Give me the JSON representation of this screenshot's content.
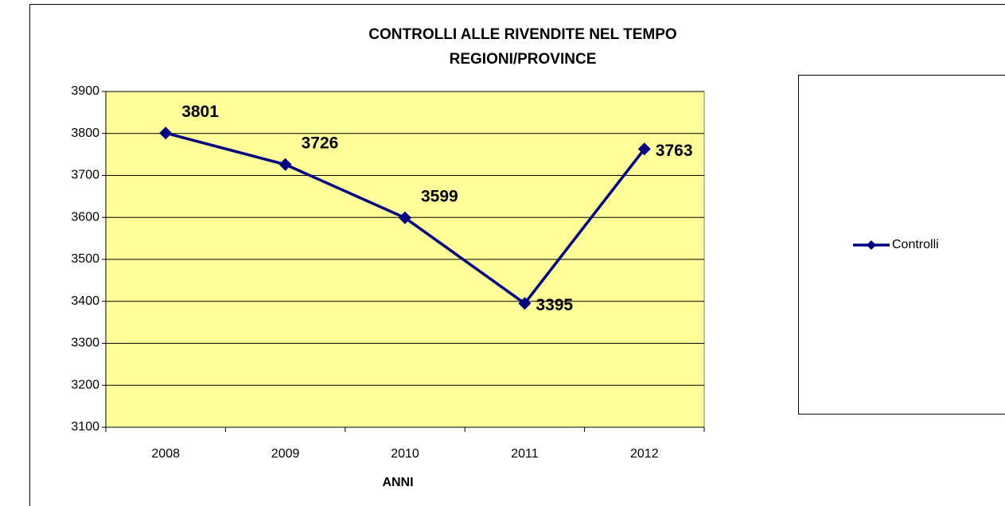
{
  "chart_data": {
    "type": "line",
    "title": "CONTROLLI ALLE RIVENDITE NEL TEMPO",
    "subtitle": "REGIONI/PROVINCE",
    "x_label": "ANNI",
    "categories": [
      "2008",
      "2009",
      "2010",
      "2011",
      "2012"
    ],
    "series": [
      {
        "name": "Controlli",
        "color": "#000080",
        "values": [
          3801,
          3726,
          3599,
          3395,
          3763
        ]
      }
    ],
    "ylim": [
      3100,
      3900
    ],
    "yticks": [
      3100,
      3200,
      3300,
      3400,
      3500,
      3600,
      3700,
      3800,
      3900
    ],
    "grid": true,
    "legend": "right"
  }
}
